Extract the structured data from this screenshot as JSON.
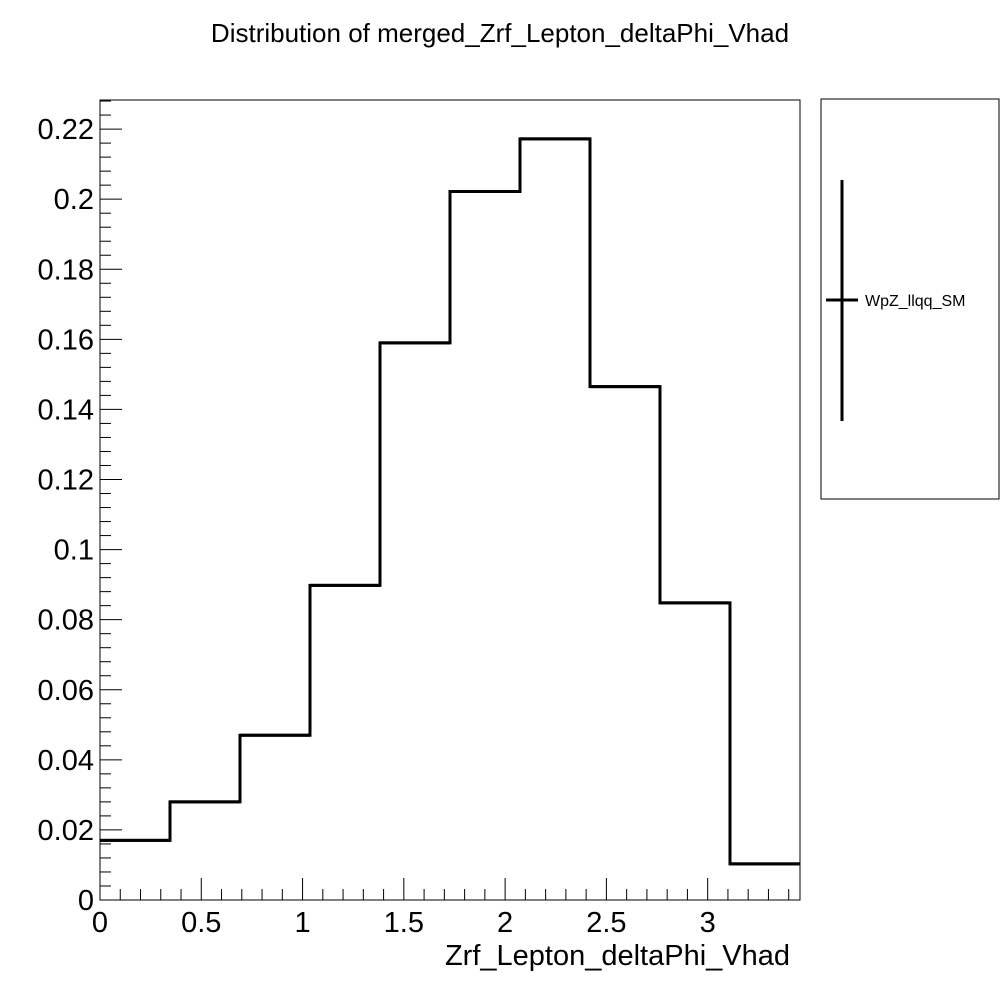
{
  "chart_data": {
    "type": "histogram",
    "title": "Distribution of merged_Zrf_Lepton_deltaPhi_Vhad",
    "xlabel": "Zrf_Lepton_deltaPhi_Vhad",
    "ylabel": "",
    "xlim": [
      0,
      3.4558
    ],
    "ylim": [
      0,
      0.2283
    ],
    "grid": false,
    "legend_placement": "right",
    "bin_edges": [
      0,
      0.34558,
      0.69115,
      1.03673,
      1.3823,
      1.72788,
      2.07345,
      2.41903,
      2.7646,
      3.11018,
      3.45575
    ],
    "series": [
      {
        "name": "WpZ_llqq_SM",
        "values": [
          0.017,
          0.028,
          0.047,
          0.0898,
          0.159,
          0.2022,
          0.2172,
          0.1465,
          0.0848,
          0.0103
        ],
        "color": "#000000"
      }
    ],
    "x_ticks": [
      {
        "value": 0,
        "label": "0"
      },
      {
        "value": 0.5,
        "label": "0.5"
      },
      {
        "value": 1,
        "label": "1"
      },
      {
        "value": 1.5,
        "label": "1.5"
      },
      {
        "value": 2,
        "label": "2"
      },
      {
        "value": 2.5,
        "label": "2.5"
      },
      {
        "value": 3,
        "label": "3"
      }
    ],
    "y_ticks": [
      {
        "value": 0,
        "label": "0"
      },
      {
        "value": 0.02,
        "label": "0.02"
      },
      {
        "value": 0.04,
        "label": "0.04"
      },
      {
        "value": 0.06,
        "label": "0.06"
      },
      {
        "value": 0.08,
        "label": "0.08"
      },
      {
        "value": 0.1,
        "label": "0.1"
      },
      {
        "value": 0.12,
        "label": "0.12"
      },
      {
        "value": 0.14,
        "label": "0.14"
      },
      {
        "value": 0.16,
        "label": "0.16"
      },
      {
        "value": 0.18,
        "label": "0.18"
      },
      {
        "value": 0.2,
        "label": "0.2"
      },
      {
        "value": 0.22,
        "label": "0.22"
      }
    ],
    "legend": {
      "entries": [
        {
          "label": "WpZ_llqq_SM",
          "marker": "error-bar"
        }
      ]
    }
  }
}
